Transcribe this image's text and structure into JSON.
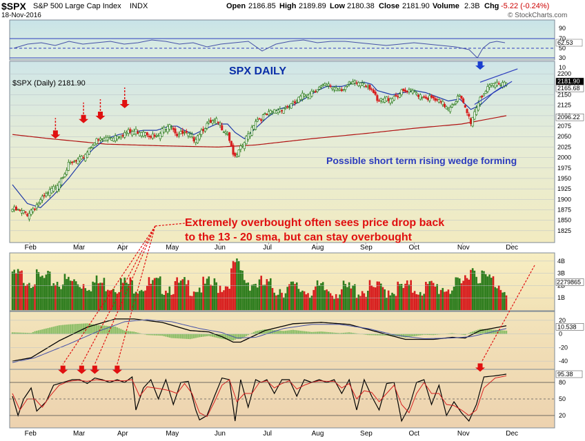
{
  "header": {
    "symbol": "$SPX",
    "name": "S&P 500 Large Cap Index",
    "exchange": "INDX",
    "date": "18-Nov-2016",
    "open_label": "Open",
    "open": "2186.85",
    "high_label": "High",
    "high": "2189.89",
    "low_label": "Low",
    "low": "2180.38",
    "close_label": "Close",
    "close": "2181.90",
    "volume_label": "Volume",
    "volume": "2.3B",
    "chg_label": "Chg",
    "chg": "-5.22 (-0.24%)",
    "chg_color": "#cc0000",
    "logo": "© StockCharts.com"
  },
  "chart_data": {
    "type": "candlestick",
    "x_labels": [
      "Feb",
      "Mar",
      "Apr",
      "May",
      "Jun",
      "Jul",
      "Aug",
      "Sep",
      "Oct",
      "Nov",
      "Dec"
    ],
    "price_panel": {
      "label": "$SPX (Daily) 2181.90",
      "title": "SPX DAILY",
      "ylim": [
        1800,
        2225
      ],
      "y_ticks": [
        1825,
        1850,
        1875,
        1900,
        1925,
        1950,
        1975,
        2000,
        2025,
        2050,
        2075,
        2100,
        2125,
        2150,
        2175,
        2200
      ],
      "price_boxes": [
        "2181.90",
        "2165.68",
        "2096.22"
      ],
      "annotation_wedge": "Possible short term rising wedge forming",
      "annotation_overbought_line1": "Extremely overbought often sees price drop back",
      "annotation_overbought_line2": "to the 13 - 20 sma, but can stay overbought",
      "close_anchors": [
        [
          0,
          1880
        ],
        [
          8,
          1870
        ],
        [
          15,
          1900
        ],
        [
          22,
          1930
        ],
        [
          30,
          1985
        ],
        [
          37,
          2000
        ],
        [
          43,
          2040
        ],
        [
          50,
          2050
        ],
        [
          57,
          2060
        ],
        [
          63,
          2065
        ],
        [
          70,
          2070
        ],
        [
          77,
          2050
        ],
        [
          84,
          2090
        ],
        [
          88,
          2060
        ],
        [
          92,
          2060
        ],
        [
          97,
          2050
        ],
        [
          103,
          2080
        ],
        [
          109,
          2090
        ],
        [
          115,
          2065
        ],
        [
          119,
          2000
        ],
        [
          124,
          2040
        ],
        [
          130,
          2095
        ],
        [
          136,
          2105
        ],
        [
          142,
          2120
        ],
        [
          150,
          2130
        ],
        [
          156,
          2155
        ],
        [
          163,
          2170
        ],
        [
          168,
          2175
        ],
        [
          176,
          2170
        ],
        [
          182,
          2180
        ],
        [
          188,
          2185
        ],
        [
          192,
          2170
        ],
        [
          195,
          2135
        ],
        [
          203,
          2150
        ],
        [
          209,
          2160
        ],
        [
          215,
          2160
        ],
        [
          221,
          2150
        ],
        [
          227,
          2138
        ],
        [
          233,
          2125
        ],
        [
          239,
          2150
        ],
        [
          245,
          2090
        ],
        [
          250,
          2150
        ],
        [
          257,
          2178
        ],
        [
          262,
          2187
        ],
        [
          264,
          2182
        ]
      ],
      "ma_fast_anchors": [
        [
          0,
          1935
        ],
        [
          8,
          1890
        ],
        [
          15,
          1880
        ],
        [
          22,
          1910
        ],
        [
          30,
          1950
        ],
        [
          37,
          1990
        ],
        [
          43,
          2020
        ],
        [
          50,
          2045
        ],
        [
          57,
          2055
        ],
        [
          63,
          2060
        ],
        [
          70,
          2065
        ],
        [
          77,
          2065
        ],
        [
          84,
          2075
        ],
        [
          88,
          2075
        ],
        [
          92,
          2065
        ],
        [
          97,
          2055
        ],
        [
          103,
          2068
        ],
        [
          109,
          2080
        ],
        [
          115,
          2080
        ],
        [
          119,
          2060
        ],
        [
          124,
          2045
        ],
        [
          130,
          2070
        ],
        [
          136,
          2095
        ],
        [
          142,
          2115
        ],
        [
          150,
          2125
        ],
        [
          156,
          2140
        ],
        [
          163,
          2160
        ],
        [
          168,
          2170
        ],
        [
          176,
          2170
        ],
        [
          182,
          2177
        ],
        [
          188,
          2180
        ],
        [
          192,
          2175
        ],
        [
          195,
          2160
        ],
        [
          203,
          2150
        ],
        [
          209,
          2155
        ],
        [
          215,
          2160
        ],
        [
          221,
          2155
        ],
        [
          227,
          2145
        ],
        [
          233,
          2135
        ],
        [
          239,
          2140
        ],
        [
          245,
          2115
        ],
        [
          250,
          2125
        ],
        [
          257,
          2155
        ],
        [
          262,
          2170
        ],
        [
          264,
          2172
        ]
      ],
      "sma200_anchors": [
        [
          0,
          2055
        ],
        [
          20,
          2045
        ],
        [
          50,
          2032
        ],
        [
          80,
          2028
        ],
        [
          110,
          2025
        ],
        [
          130,
          2030
        ],
        [
          160,
          2045
        ],
        [
          190,
          2058
        ],
        [
          215,
          2070
        ],
        [
          240,
          2080
        ],
        [
          264,
          2100
        ]
      ],
      "wedge_upper": [
        [
          250,
          2180
        ],
        [
          270,
          2212
        ]
      ],
      "wedge_lower": [
        [
          247,
          2127
        ],
        [
          267,
          2182
        ]
      ]
    },
    "volume_panel": {
      "y_ticks": [
        "1B",
        "2B",
        "3B",
        "4B"
      ],
      "ylim": [
        0,
        4.5
      ],
      "current_label": "2279865",
      "volume_anchors": [
        [
          0,
          3.2
        ],
        [
          10,
          3.0
        ],
        [
          20,
          2.8
        ],
        [
          40,
          2.6
        ],
        [
          60,
          2.5
        ],
        [
          80,
          2.4
        ],
        [
          100,
          2.3
        ],
        [
          115,
          2.5
        ],
        [
          119,
          4.2
        ],
        [
          125,
          2.8
        ],
        [
          140,
          2.2
        ],
        [
          170,
          2.0
        ],
        [
          200,
          2.1
        ],
        [
          220,
          2.2
        ],
        [
          240,
          2.3
        ],
        [
          245,
          4.0
        ],
        [
          250,
          3.2
        ],
        [
          264,
          2.3
        ]
      ]
    },
    "macd_panel": {
      "y_ticks": [
        20,
        0,
        -20,
        -40
      ],
      "ylim": [
        -50,
        30
      ],
      "current_label": "10.538",
      "macd_anchors": [
        [
          0,
          -40
        ],
        [
          10,
          -35
        ],
        [
          25,
          -10
        ],
        [
          40,
          10
        ],
        [
          55,
          22
        ],
        [
          65,
          22
        ],
        [
          80,
          17
        ],
        [
          95,
          5
        ],
        [
          105,
          3
        ],
        [
          112,
          -4
        ],
        [
          118,
          -12
        ],
        [
          122,
          -12
        ],
        [
          135,
          5
        ],
        [
          150,
          15
        ],
        [
          165,
          17
        ],
        [
          180,
          14
        ],
        [
          195,
          3
        ],
        [
          210,
          -8
        ],
        [
          225,
          -8
        ],
        [
          235,
          -5
        ],
        [
          242,
          -6
        ],
        [
          250,
          5
        ],
        [
          264,
          12
        ]
      ],
      "signal_anchors": [
        [
          0,
          -42
        ],
        [
          12,
          -35
        ],
        [
          30,
          -15
        ],
        [
          45,
          3
        ],
        [
          60,
          18
        ],
        [
          72,
          21
        ],
        [
          85,
          18
        ],
        [
          100,
          8
        ],
        [
          112,
          2
        ],
        [
          120,
          -6
        ],
        [
          130,
          -5
        ],
        [
          145,
          8
        ],
        [
          160,
          14
        ],
        [
          175,
          14
        ],
        [
          190,
          8
        ],
        [
          205,
          -2
        ],
        [
          220,
          -7
        ],
        [
          235,
          -6
        ],
        [
          245,
          -4
        ],
        [
          255,
          2
        ],
        [
          264,
          8
        ]
      ]
    },
    "stoch_panel": {
      "y_ticks": [
        20,
        50,
        80
      ],
      "ylim": [
        0,
        100
      ],
      "current_label": "95.38",
      "k_anchors": [
        [
          0,
          55
        ],
        [
          3,
          20
        ],
        [
          6,
          50
        ],
        [
          10,
          70
        ],
        [
          13,
          28
        ],
        [
          18,
          45
        ],
        [
          22,
          75
        ],
        [
          27,
          80
        ],
        [
          32,
          85
        ],
        [
          36,
          85
        ],
        [
          40,
          78
        ],
        [
          44,
          88
        ],
        [
          48,
          85
        ],
        [
          52,
          80
        ],
        [
          56,
          85
        ],
        [
          60,
          80
        ],
        [
          64,
          90
        ],
        [
          66,
          30
        ],
        [
          70,
          70
        ],
        [
          74,
          85
        ],
        [
          78,
          50
        ],
        [
          82,
          85
        ],
        [
          86,
          40
        ],
        [
          90,
          80
        ],
        [
          94,
          82
        ],
        [
          98,
          30
        ],
        [
          100,
          12
        ],
        [
          104,
          20
        ],
        [
          108,
          55
        ],
        [
          112,
          88
        ],
        [
          116,
          85
        ],
        [
          119,
          10
        ],
        [
          122,
          85
        ],
        [
          126,
          35
        ],
        [
          130,
          85
        ],
        [
          133,
          80
        ],
        [
          136,
          85
        ],
        [
          140,
          60
        ],
        [
          144,
          85
        ],
        [
          148,
          85
        ],
        [
          152,
          55
        ],
        [
          156,
          85
        ],
        [
          160,
          80
        ],
        [
          164,
          85
        ],
        [
          168,
          80
        ],
        [
          172,
          85
        ],
        [
          176,
          60
        ],
        [
          180,
          85
        ],
        [
          184,
          30
        ],
        [
          188,
          85
        ],
        [
          192,
          55
        ],
        [
          196,
          30
        ],
        [
          200,
          78
        ],
        [
          204,
          80
        ],
        [
          208,
          10
        ],
        [
          212,
          35
        ],
        [
          216,
          80
        ],
        [
          220,
          85
        ],
        [
          224,
          40
        ],
        [
          228,
          75
        ],
        [
          232,
          20
        ],
        [
          236,
          45
        ],
        [
          240,
          25
        ],
        [
          244,
          10
        ],
        [
          248,
          40
        ],
        [
          252,
          90
        ],
        [
          258,
          92
        ],
        [
          264,
          95
        ]
      ],
      "d_anchors": [
        [
          0,
          60
        ],
        [
          4,
          30
        ],
        [
          8,
          50
        ],
        [
          12,
          50
        ],
        [
          16,
          35
        ],
        [
          20,
          55
        ],
        [
          25,
          75
        ],
        [
          30,
          82
        ],
        [
          35,
          84
        ],
        [
          40,
          82
        ],
        [
          45,
          85
        ],
        [
          50,
          83
        ],
        [
          55,
          83
        ],
        [
          60,
          83
        ],
        [
          64,
          85
        ],
        [
          68,
          55
        ],
        [
          72,
          72
        ],
        [
          76,
          70
        ],
        [
          80,
          68
        ],
        [
          84,
          65
        ],
        [
          88,
          60
        ],
        [
          92,
          78
        ],
        [
          96,
          60
        ],
        [
          100,
          25
        ],
        [
          104,
          18
        ],
        [
          108,
          45
        ],
        [
          112,
          75
        ],
        [
          116,
          85
        ],
        [
          120,
          45
        ],
        [
          124,
          60
        ],
        [
          128,
          60
        ],
        [
          132,
          80
        ],
        [
          136,
          83
        ],
        [
          140,
          70
        ],
        [
          144,
          78
        ],
        [
          148,
          83
        ],
        [
          152,
          68
        ],
        [
          156,
          75
        ],
        [
          160,
          80
        ],
        [
          164,
          83
        ],
        [
          168,
          82
        ],
        [
          172,
          82
        ],
        [
          176,
          70
        ],
        [
          180,
          78
        ],
        [
          184,
          50
        ],
        [
          188,
          65
        ],
        [
          192,
          62
        ],
        [
          196,
          45
        ],
        [
          200,
          60
        ],
        [
          204,
          75
        ],
        [
          208,
          40
        ],
        [
          212,
          25
        ],
        [
          216,
          60
        ],
        [
          220,
          80
        ],
        [
          224,
          60
        ],
        [
          228,
          60
        ],
        [
          232,
          40
        ],
        [
          236,
          38
        ],
        [
          240,
          30
        ],
        [
          244,
          20
        ],
        [
          248,
          30
        ],
        [
          252,
          70
        ],
        [
          258,
          88
        ],
        [
          264,
          92
        ]
      ]
    },
    "down_arrow_positions": [
      {
        "panel": "price",
        "index": 23,
        "value": 2045
      },
      {
        "panel": "price",
        "index": 38,
        "value": 2082
      },
      {
        "panel": "price",
        "index": 47,
        "value": 2090
      },
      {
        "panel": "price",
        "index": 60,
        "value": 2118
      },
      {
        "panel": "price",
        "index": 250,
        "value": 2210
      },
      {
        "panel": "stoch",
        "index": 27,
        "value": 93
      },
      {
        "panel": "stoch",
        "index": 37,
        "value": 93
      },
      {
        "panel": "stoch",
        "index": 44,
        "value": 93
      },
      {
        "panel": "stoch",
        "index": 56,
        "value": 93
      },
      {
        "panel": "stoch",
        "index": 250,
        "value": 97
      }
    ]
  },
  "colors": {
    "up": "#2e7d1e",
    "down": "#d81f1f",
    "grid": "#b9c0c8",
    "arrow_red": "#e01010",
    "arrow_blue": "#1a3fd0",
    "title_blue": "#0a2ea8",
    "wedge_blue": "#2b3bbd",
    "annotation_red": "#e01010"
  }
}
